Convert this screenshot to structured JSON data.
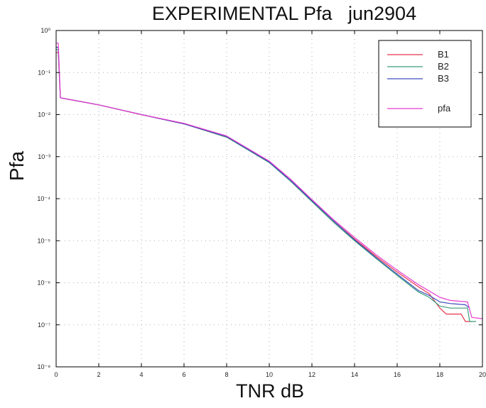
{
  "chart_data": {
    "type": "line",
    "title": "EXPERIMENTAL Pfa   jun2904",
    "xlabel": "TNR dB",
    "ylabel": "Pfa",
    "xlim": [
      0,
      20
    ],
    "ylim": [
      1e-08,
      1
    ],
    "yscale": "log",
    "grid": true,
    "legend_position": "top-right",
    "x_ticks": [
      0,
      2,
      4,
      6,
      8,
      10,
      12,
      14,
      16,
      18,
      20
    ],
    "y_ticks": [
      1,
      0.1,
      0.01,
      0.001,
      0.0001,
      1e-05,
      1e-06,
      1e-07,
      1e-08
    ],
    "y_tick_labels": [
      "10⁰",
      "10⁻¹",
      "10⁻²",
      "10⁻³",
      "10⁻⁴",
      "10⁻⁵",
      "10⁻⁶",
      "10⁻⁷",
      "10⁻⁸"
    ],
    "series": [
      {
        "name": "B1",
        "color": "#e8344a",
        "x": [
          0,
          0.1,
          0.2,
          2,
          4,
          6,
          8,
          10,
          11,
          12,
          13,
          14,
          15,
          16,
          17,
          17.5,
          18,
          18.3,
          19,
          19.2,
          19.5
        ],
        "y": [
          0.3,
          0.3,
          0.025,
          0.017,
          0.01,
          0.006,
          0.0029,
          0.00075,
          0.00027,
          9e-05,
          3e-05,
          1.1e-05,
          4.3e-06,
          1.8e-06,
          8e-07,
          5.5e-07,
          2.5e-07,
          1.8e-07,
          1.8e-07,
          1.2e-07,
          1.2e-07
        ]
      },
      {
        "name": "B2",
        "color": "#3a9f7a",
        "x": [
          0,
          0.1,
          0.2,
          2,
          4,
          6,
          8,
          10,
          11,
          12,
          13,
          14,
          15,
          16,
          17,
          17.5,
          18,
          18.5,
          19.3,
          19.4,
          19.7
        ],
        "y": [
          0.35,
          0.35,
          0.025,
          0.017,
          0.01,
          0.006,
          0.0029,
          0.00072,
          0.00026,
          8.5e-05,
          2.8e-05,
          1e-05,
          3.8e-06,
          1.5e-06,
          6e-07,
          4.5e-07,
          2.8e-07,
          2.5e-07,
          2.5e-07,
          1.2e-07,
          1.2e-07
        ]
      },
      {
        "name": "B3",
        "color": "#3f4fbf",
        "x": [
          0,
          0.1,
          0.2,
          2,
          4,
          6,
          8,
          10,
          11,
          12,
          13,
          14,
          15,
          16,
          17,
          17.5,
          18,
          18.5,
          19.2,
          19.4
        ],
        "y": [
          0.4,
          0.4,
          0.025,
          0.017,
          0.01,
          0.006,
          0.003,
          0.00074,
          0.00027,
          9e-05,
          3e-05,
          1.05e-05,
          4e-06,
          1.6e-06,
          6.5e-07,
          5e-07,
          3.5e-07,
          3.2e-07,
          3e-07,
          2.5e-07
        ]
      },
      {
        "name": "pfa",
        "color": "#e83ad0",
        "x": [
          0,
          0.1,
          0.2,
          2,
          4,
          6,
          8,
          10,
          11,
          12,
          13,
          14,
          15,
          16,
          17,
          18,
          18.5,
          19.3,
          19.5,
          20
        ],
        "y": [
          0.5,
          0.5,
          0.025,
          0.017,
          0.01,
          0.0062,
          0.0031,
          0.00078,
          0.00029,
          9.5e-05,
          3.2e-05,
          1.2e-05,
          4.7e-06,
          2e-06,
          9e-07,
          4.5e-07,
          3.8e-07,
          3.5e-07,
          1.5e-07,
          1.4e-07
        ]
      }
    ]
  }
}
